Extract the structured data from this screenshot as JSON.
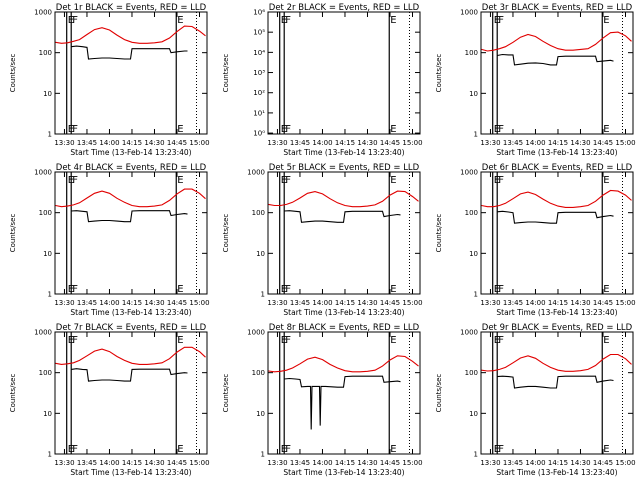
{
  "colors": {
    "events": "#000000",
    "lld": "#e00000",
    "axis": "#000000",
    "background": "#ffffff"
  },
  "shared": {
    "xlabel": "Start Time (13-Feb-14 13:23:40)",
    "ylabel": "Counts/sec",
    "x_tick_labels": [
      "13:30",
      "13:45",
      "14:00",
      "14:15",
      "14:30",
      "14:45",
      "15:00"
    ],
    "x_tick_minutes": [
      30,
      45,
      60,
      75,
      90,
      105,
      120
    ],
    "xlim_minutes": [
      23.7,
      125
    ],
    "log_y": true,
    "marker_letters": [
      "E",
      "F",
      "E"
    ],
    "marker_minutes": [
      31.5,
      34.5,
      104.5
    ],
    "dotted_marker_minute": 118
  },
  "chart_data": [
    {
      "type": "line",
      "title": "Det 1r BLACK = Events, RED = LLD",
      "ylim": [
        1,
        1000
      ],
      "y_tick_labels": [
        "1",
        "10",
        "100",
        "1000"
      ],
      "y_tick_values": [
        1,
        10,
        100,
        1000
      ],
      "series": [
        {
          "name": "Events",
          "x": [
            34.5,
            38,
            42,
            45,
            46,
            50,
            55,
            60,
            65,
            70,
            74,
            75,
            80,
            85,
            90,
            95,
            100,
            101,
            105,
            110,
            112
          ],
          "y": [
            140,
            145,
            140,
            135,
            70,
            72,
            74,
            74,
            72,
            70,
            70,
            125,
            125,
            125,
            125,
            125,
            125,
            100,
            105,
            110,
            110
          ]
        },
        {
          "name": "LLD",
          "x": [
            24,
            28,
            32,
            36,
            40,
            45,
            50,
            55,
            60,
            65,
            70,
            75,
            80,
            85,
            90,
            95,
            100,
            105,
            110,
            115,
            120,
            124
          ],
          "y": [
            180,
            170,
            175,
            190,
            210,
            280,
            370,
            410,
            360,
            270,
            210,
            180,
            170,
            170,
            175,
            185,
            230,
            330,
            450,
            440,
            340,
            260
          ]
        }
      ]
    },
    {
      "type": "line",
      "title": "Det 2r BLACK = Events, RED = LLD",
      "ylim": [
        0.9,
        1000000
      ],
      "y_tick_labels": [
        "10⁰",
        "10¹",
        "10²",
        "10³",
        "10⁴",
        "10⁵",
        "10⁶"
      ],
      "y_tick_values": [
        1,
        10,
        100,
        1000,
        10000,
        100000,
        1000000
      ],
      "series": []
    },
    {
      "type": "line",
      "title": "Det 3r BLACK = Events, RED = LLD",
      "ylim": [
        1,
        1000
      ],
      "y_tick_labels": [
        "1",
        "10",
        "100",
        "1000"
      ],
      "y_tick_values": [
        1,
        10,
        100,
        1000
      ],
      "series": [
        {
          "name": "Events",
          "x": [
            34.5,
            38,
            42,
            45,
            46,
            50,
            55,
            60,
            65,
            70,
            74,
            75,
            80,
            85,
            90,
            95,
            100,
            101,
            105,
            110,
            112
          ],
          "y": [
            85,
            90,
            88,
            88,
            50,
            52,
            55,
            56,
            54,
            50,
            50,
            80,
            82,
            82,
            82,
            82,
            82,
            60,
            62,
            65,
            62
          ]
        },
        {
          "name": "LLD",
          "x": [
            24,
            28,
            32,
            36,
            40,
            45,
            50,
            55,
            60,
            65,
            70,
            75,
            80,
            85,
            90,
            95,
            100,
            105,
            110,
            115,
            120,
            124
          ],
          "y": [
            120,
            110,
            115,
            125,
            140,
            180,
            240,
            280,
            250,
            190,
            150,
            125,
            115,
            115,
            120,
            125,
            160,
            230,
            310,
            320,
            260,
            190
          ]
        }
      ]
    },
    {
      "type": "line",
      "title": "Det 4r BLACK = Events, RED = LLD",
      "ylim": [
        1,
        1000
      ],
      "y_tick_labels": [
        "1",
        "10",
        "100",
        "1000"
      ],
      "y_tick_values": [
        1,
        10,
        100,
        1000
      ],
      "series": [
        {
          "name": "Events",
          "x": [
            34.5,
            38,
            42,
            45,
            46,
            50,
            55,
            60,
            65,
            70,
            74,
            75,
            80,
            85,
            90,
            95,
            100,
            101,
            105,
            110,
            112
          ],
          "y": [
            110,
            112,
            108,
            105,
            60,
            62,
            64,
            64,
            62,
            60,
            60,
            110,
            112,
            112,
            112,
            112,
            112,
            85,
            90,
            95,
            92
          ]
        },
        {
          "name": "LLD",
          "x": [
            24,
            28,
            32,
            36,
            40,
            45,
            50,
            55,
            60,
            65,
            70,
            75,
            80,
            85,
            90,
            95,
            100,
            105,
            110,
            115,
            120,
            124
          ],
          "y": [
            150,
            140,
            145,
            155,
            175,
            230,
            300,
            340,
            300,
            225,
            180,
            150,
            140,
            140,
            145,
            155,
            200,
            290,
            380,
            380,
            300,
            220
          ]
        }
      ]
    },
    {
      "type": "line",
      "title": "Det 5r BLACK = Events, RED = LLD",
      "ylim": [
        1,
        1000
      ],
      "y_tick_labels": [
        "1",
        "10",
        "100",
        "1000"
      ],
      "y_tick_values": [
        1,
        10,
        100,
        1000
      ],
      "series": [
        {
          "name": "Events",
          "x": [
            34.5,
            38,
            42,
            45,
            46,
            50,
            55,
            60,
            65,
            70,
            74,
            75,
            80,
            85,
            90,
            95,
            100,
            101,
            105,
            110,
            112
          ],
          "y": [
            110,
            112,
            108,
            105,
            58,
            60,
            62,
            62,
            60,
            58,
            58,
            105,
            108,
            108,
            108,
            108,
            108,
            80,
            85,
            90,
            88
          ]
        },
        {
          "name": "LLD",
          "x": [
            24,
            28,
            32,
            36,
            40,
            45,
            50,
            55,
            60,
            65,
            70,
            75,
            80,
            85,
            90,
            95,
            100,
            105,
            110,
            115,
            120,
            124
          ],
          "y": [
            160,
            150,
            150,
            160,
            180,
            230,
            300,
            330,
            290,
            220,
            175,
            150,
            140,
            140,
            145,
            155,
            190,
            270,
            340,
            330,
            250,
            190
          ]
        }
      ]
    },
    {
      "type": "line",
      "title": "Det 6r BLACK = Events, RED = LLD",
      "ylim": [
        1,
        1000
      ],
      "y_tick_labels": [
        "1",
        "10",
        "100",
        "1000"
      ],
      "y_tick_values": [
        1,
        10,
        100,
        1000
      ],
      "series": [
        {
          "name": "Events",
          "x": [
            34.5,
            38,
            42,
            45,
            46,
            50,
            55,
            60,
            65,
            70,
            74,
            75,
            80,
            85,
            90,
            95,
            100,
            101,
            105,
            110,
            112
          ],
          "y": [
            105,
            108,
            104,
            100,
            55,
            57,
            59,
            59,
            57,
            55,
            55,
            100,
            102,
            102,
            102,
            102,
            102,
            75,
            80,
            85,
            82
          ]
        },
        {
          "name": "LLD",
          "x": [
            24,
            28,
            32,
            36,
            40,
            45,
            50,
            55,
            60,
            65,
            70,
            75,
            80,
            85,
            90,
            95,
            100,
            105,
            110,
            115,
            120,
            124
          ],
          "y": [
            150,
            140,
            140,
            150,
            170,
            220,
            290,
            320,
            280,
            215,
            170,
            145,
            135,
            135,
            140,
            150,
            190,
            270,
            350,
            340,
            270,
            200
          ]
        }
      ]
    },
    {
      "type": "line",
      "title": "Det 7r BLACK = Events, RED = LLD",
      "ylim": [
        1,
        1000
      ],
      "y_tick_labels": [
        "1",
        "10",
        "100",
        "1000"
      ],
      "y_tick_values": [
        1,
        10,
        100,
        1000
      ],
      "series": [
        {
          "name": "Events",
          "x": [
            34.5,
            38,
            42,
            45,
            46,
            50,
            55,
            60,
            65,
            70,
            74,
            75,
            80,
            85,
            90,
            95,
            100,
            101,
            105,
            110,
            112
          ],
          "y": [
            120,
            125,
            120,
            118,
            62,
            64,
            66,
            66,
            64,
            62,
            62,
            120,
            122,
            122,
            122,
            122,
            122,
            90,
            95,
            100,
            98
          ]
        },
        {
          "name": "LLD",
          "x": [
            24,
            28,
            32,
            36,
            40,
            45,
            50,
            55,
            60,
            65,
            70,
            75,
            80,
            85,
            90,
            95,
            100,
            105,
            110,
            115,
            120,
            124
          ],
          "y": [
            170,
            160,
            165,
            175,
            200,
            260,
            340,
            380,
            330,
            250,
            200,
            170,
            160,
            160,
            165,
            175,
            220,
            320,
            420,
            420,
            330,
            240
          ]
        }
      ]
    },
    {
      "type": "line",
      "title": "Det 8r BLACK = Events, RED = LLD",
      "ylim": [
        1,
        1000
      ],
      "y_tick_labels": [
        "1",
        "10",
        "100",
        "1000"
      ],
      "y_tick_values": [
        1,
        10,
        100,
        1000
      ],
      "series": [
        {
          "name": "Events",
          "x": [
            34.5,
            38,
            42,
            45,
            46,
            50,
            52,
            52.5,
            53,
            56,
            58,
            58.5,
            59,
            62,
            66,
            70,
            74,
            75,
            80,
            85,
            90,
            95,
            100,
            101,
            105,
            110,
            112
          ],
          "y": [
            70,
            72,
            70,
            68,
            45,
            46,
            46,
            4,
            46,
            46,
            46,
            5,
            46,
            46,
            45,
            44,
            44,
            80,
            82,
            82,
            82,
            82,
            82,
            58,
            60,
            62,
            60
          ]
        },
        {
          "name": "LLD",
          "x": [
            24,
            28,
            32,
            36,
            40,
            45,
            50,
            55,
            60,
            65,
            70,
            75,
            80,
            85,
            90,
            95,
            100,
            105,
            110,
            115,
            120,
            124
          ],
          "y": [
            110,
            105,
            108,
            115,
            130,
            165,
            215,
            240,
            210,
            160,
            130,
            112,
            105,
            105,
            108,
            115,
            145,
            205,
            260,
            250,
            190,
            145
          ]
        }
      ]
    },
    {
      "type": "line",
      "title": "Det 9r BLACK = Events, RED = LLD",
      "ylim": [
        1,
        1000
      ],
      "y_tick_labels": [
        "1",
        "10",
        "100",
        "1000"
      ],
      "y_tick_values": [
        1,
        10,
        100,
        1000
      ],
      "series": [
        {
          "name": "Events",
          "x": [
            34.5,
            38,
            42,
            45,
            46,
            50,
            55,
            60,
            65,
            70,
            74,
            75,
            80,
            85,
            90,
            95,
            100,
            101,
            105,
            110,
            112
          ],
          "y": [
            80,
            82,
            80,
            78,
            42,
            44,
            46,
            46,
            44,
            42,
            42,
            80,
            82,
            82,
            82,
            82,
            82,
            58,
            62,
            66,
            64
          ]
        },
        {
          "name": "LLD",
          "x": [
            24,
            28,
            32,
            36,
            40,
            45,
            50,
            55,
            60,
            65,
            70,
            75,
            80,
            85,
            90,
            95,
            100,
            105,
            110,
            115,
            120,
            124
          ],
          "y": [
            115,
            110,
            112,
            120,
            135,
            175,
            230,
            260,
            225,
            170,
            135,
            115,
            108,
            108,
            112,
            120,
            150,
            215,
            280,
            280,
            220,
            160
          ]
        }
      ]
    }
  ]
}
